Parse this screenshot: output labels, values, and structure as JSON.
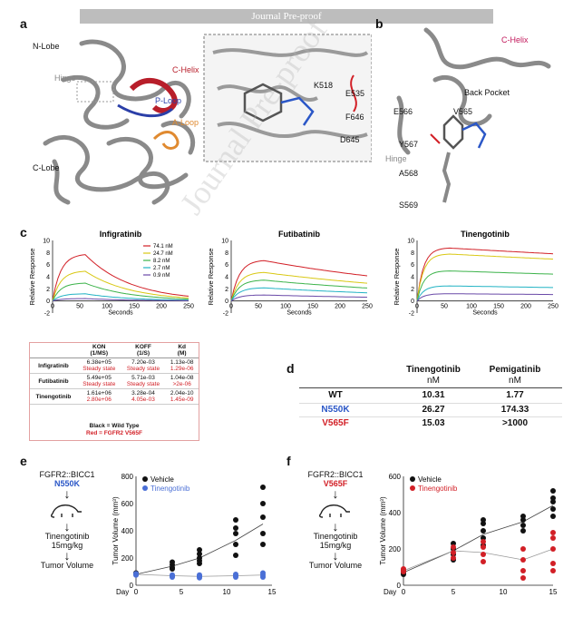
{
  "banner": "Journal Pre-proof",
  "watermark": "Journal Pre-proof",
  "panels": {
    "a": "a",
    "b": "b",
    "c": "c",
    "d": "d",
    "e": "e",
    "f": "f"
  },
  "panel_a": {
    "labels": {
      "nlobe": "N-Lobe",
      "hinge": "Hinge",
      "clobe": "C-Lobe",
      "chelix": "C-Helix",
      "ploop": "P-Loop",
      "aloop": "A-Loop",
      "k518": "K518",
      "e535": "E535",
      "f646": "F646",
      "d645": "D645"
    }
  },
  "panel_b": {
    "labels": {
      "chelix": "C-Helix",
      "back_pocket": "Back Pocket",
      "e566": "E566",
      "v565": "V565",
      "y567": "Y567",
      "hinge": "Hinge",
      "a568": "A568",
      "s569": "S569"
    }
  },
  "panel_c": {
    "charts": [
      {
        "title": "Infigratinib",
        "ylabel": "Relative Response",
        "xlabel": "Seconds",
        "yticks": [
          "10",
          "8",
          "6",
          "4",
          "2",
          "0",
          "-2"
        ],
        "xticks": [
          "0",
          "50",
          "100",
          "150",
          "200",
          "250"
        ]
      },
      {
        "title": "Futibatinib",
        "ylabel": "Relative Response",
        "xlabel": "Seconds",
        "yticks": [
          "10",
          "8",
          "6",
          "4",
          "2",
          "0",
          "-2"
        ],
        "xticks": [
          "0",
          "50",
          "100",
          "150",
          "200",
          "250"
        ]
      },
      {
        "title": "Tinengotinib",
        "ylabel": "Relative Response",
        "xlabel": "Seconds",
        "yticks": [
          "10",
          "8",
          "6",
          "4",
          "2",
          "0",
          "-2"
        ],
        "xticks": [
          "0",
          "50",
          "100",
          "150",
          "200",
          "250"
        ]
      }
    ],
    "legend": [
      "74.1 nM",
      "24.7 nM",
      "8.2 nM",
      "2.7 nM",
      "0.9 nM"
    ],
    "table": {
      "head": [
        "",
        "KON\n(1/MS)",
        "KOFF\n(1/S)",
        "Kd\n(M)"
      ],
      "kon": "KON",
      "kon_unit": "(1/MS)",
      "koff": "KOFF",
      "koff_unit": "(1/S)",
      "kd": "Kd",
      "kd_unit": "(M)",
      "rows": [
        {
          "name": "Infigratinib",
          "wt": [
            "6.38e+05",
            "7.20e-03",
            "1.13e-08"
          ],
          "mut": [
            "Steady state",
            "Steady state",
            "1.29e-06"
          ]
        },
        {
          "name": "Futibatinib",
          "wt": [
            "5.49e+05",
            "5.71e-03",
            "1.04e-08"
          ],
          "mut": [
            "Steady state",
            "Steady state",
            ">2e-06"
          ]
        },
        {
          "name": "Tinengotinib",
          "wt": [
            "1.61e+06",
            "3.28e-04",
            "2.04e-10"
          ],
          "mut": [
            "2.80e+06",
            "4.05e-03",
            "1.45e-09"
          ]
        }
      ],
      "note1": "Black = Wild Type",
      "note2": "Red = FGFR2 V565F"
    }
  },
  "panel_d": {
    "col1": "Tinengotinib",
    "col1_unit": "nM",
    "col2": "Pemigatinib",
    "col2_unit": "nM",
    "rows": [
      {
        "name": "WT",
        "v1": "10.31",
        "v2": "1.77"
      },
      {
        "name": "N550K",
        "v1": "26.27",
        "v2": "174.33"
      },
      {
        "name": "V565F",
        "v1": "15.03",
        "v2": ">1000"
      }
    ]
  },
  "panel_e": {
    "model_line1": "FGFR2::BICC1",
    "model_line2": "N550K",
    "drug": "Tinengotinib",
    "dose": "15mg/kg",
    "readout": "Tumor Volume",
    "ylabel": "Tumor Volume (mm³)",
    "xlabel": "Day",
    "legend": [
      "Vehicle",
      "Tinengotinib"
    ],
    "yticks": [
      "800",
      "600",
      "400",
      "200",
      "0"
    ],
    "xticks": [
      "0",
      "5",
      "10",
      "15"
    ]
  },
  "panel_f": {
    "model_line1": "FGFR2::BICC1",
    "model_line2": "V565F",
    "drug": "Tinengotinib",
    "dose": "15mg/kg",
    "readout": "Tumor Volume",
    "ylabel": "Tumor Volume (mm³)",
    "xlabel": "Day",
    "legend": [
      "Vehicle",
      "Tinengotinib"
    ],
    "yticks": [
      "600",
      "400",
      "200",
      "0"
    ],
    "xticks": [
      "0",
      "5",
      "10",
      "15"
    ]
  },
  "chart_data": [
    {
      "type": "line",
      "title": "Infigratinib",
      "xlabel": "Seconds",
      "ylabel": "Relative Response",
      "xlim": [
        0,
        250
      ],
      "ylim": [
        -2,
        10
      ],
      "series": [
        {
          "name": "74.1 nM",
          "peak": 7.8
        },
        {
          "name": "24.7 nM",
          "peak": 5.0
        },
        {
          "name": "8.2 nM",
          "peak": 3.0
        },
        {
          "name": "2.7 nM",
          "peak": 1.2
        },
        {
          "name": "0.9 nM",
          "peak": 0.4
        }
      ]
    },
    {
      "type": "line",
      "title": "Futibatinib",
      "xlabel": "Seconds",
      "ylabel": "Relative Response",
      "xlim": [
        0,
        250
      ],
      "ylim": [
        -2,
        10
      ],
      "series": [
        {
          "name": "74.1 nM",
          "peak": 6.8
        },
        {
          "name": "24.7 nM",
          "peak": 4.8
        },
        {
          "name": "8.2 nM",
          "peak": 3.5
        },
        {
          "name": "2.7 nM",
          "peak": 2.2
        },
        {
          "name": "0.9 nM",
          "peak": 1.0
        }
      ]
    },
    {
      "type": "line",
      "title": "Tinengotinib",
      "xlabel": "Seconds",
      "ylabel": "Relative Response",
      "xlim": [
        0,
        250
      ],
      "ylim": [
        -2,
        10
      ],
      "series": [
        {
          "name": "74.1 nM",
          "peak": 8.8
        },
        {
          "name": "24.7 nM",
          "peak": 7.8
        },
        {
          "name": "8.2 nM",
          "peak": 5.0
        },
        {
          "name": "2.7 nM",
          "peak": 2.5
        },
        {
          "name": "0.9 nM",
          "peak": 1.2
        }
      ]
    },
    {
      "type": "scatter",
      "xlabel": "Day",
      "ylabel": "Tumor Volume (mm³)",
      "ylim": [
        0,
        800
      ],
      "series": [
        {
          "name": "Vehicle",
          "x": [
            0,
            4,
            7,
            11,
            14
          ],
          "mean": [
            80,
            140,
            200,
            330,
            450
          ]
        },
        {
          "name": "Tinengotinib",
          "x": [
            0,
            4,
            7,
            11,
            14
          ],
          "mean": [
            80,
            70,
            65,
            70,
            75
          ]
        }
      ]
    },
    {
      "type": "scatter",
      "xlabel": "Day",
      "ylabel": "Tumor Volume (mm³)",
      "ylim": [
        0,
        600
      ],
      "series": [
        {
          "name": "Vehicle",
          "x": [
            0,
            5,
            8,
            12,
            15
          ],
          "mean": [
            70,
            190,
            280,
            350,
            440
          ]
        },
        {
          "name": "Tinengotinib",
          "x": [
            0,
            5,
            8,
            12,
            15
          ],
          "mean": [
            80,
            190,
            180,
            140,
            200
          ]
        }
      ]
    }
  ],
  "colors": {
    "red": "#d21f26",
    "blue": "#4a6fd6",
    "yellow": "#d9c814",
    "green": "#3cb34a",
    "cyan": "#22b3c4",
    "purple": "#6a4aa8"
  }
}
